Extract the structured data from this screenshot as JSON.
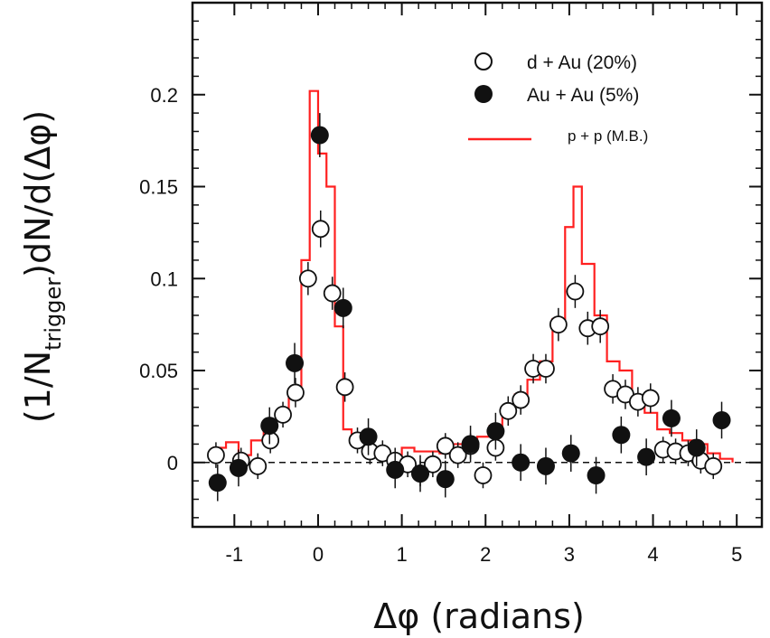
{
  "chart_data": {
    "type": "scatter",
    "title": "",
    "xlabel": "Δφ (radians)",
    "ylabel_parts": {
      "prefix": "(1/N",
      "subscript": "trigger",
      "suffix": ")dN/d(Δφ)"
    },
    "xlim": [
      -1.5,
      5.3
    ],
    "ylim": [
      -0.035,
      0.25
    ],
    "x_ticks": [
      {
        "value": -1,
        "label": "-1"
      },
      {
        "value": 0,
        "label": "0"
      },
      {
        "value": 1,
        "label": "1"
      },
      {
        "value": 2,
        "label": "2"
      },
      {
        "value": 3,
        "label": "3"
      },
      {
        "value": 4,
        "label": "4"
      },
      {
        "value": 5,
        "label": "5"
      }
    ],
    "y_ticks": [
      {
        "value": 0,
        "label": "0"
      },
      {
        "value": 0.05,
        "label": "0.05"
      },
      {
        "value": 0.1,
        "label": "0.1"
      },
      {
        "value": 0.15,
        "label": "0.15"
      },
      {
        "value": 0.2,
        "label": "0.2"
      }
    ],
    "zero_line": true,
    "grid": false,
    "legend_position": "top-right",
    "colors": {
      "pp": "#ff2020",
      "axis": "#111111",
      "markers": "#111111"
    },
    "series": [
      {
        "name": "d + Au (20%)",
        "marker": "open-circle",
        "points": [
          {
            "x": -1.22,
            "y": 0.004,
            "err": 0.007
          },
          {
            "x": -0.92,
            "y": 0.001,
            "err": 0.007
          },
          {
            "x": -0.72,
            "y": -0.002,
            "err": 0.007
          },
          {
            "x": -0.57,
            "y": 0.012,
            "err": 0.007
          },
          {
            "x": -0.42,
            "y": 0.026,
            "err": 0.007
          },
          {
            "x": -0.27,
            "y": 0.038,
            "err": 0.008
          },
          {
            "x": -0.12,
            "y": 0.1,
            "err": 0.009
          },
          {
            "x": 0.03,
            "y": 0.127,
            "err": 0.01
          },
          {
            "x": 0.17,
            "y": 0.092,
            "err": 0.009
          },
          {
            "x": 0.32,
            "y": 0.041,
            "err": 0.008
          },
          {
            "x": 0.47,
            "y": 0.012,
            "err": 0.007
          },
          {
            "x": 0.62,
            "y": 0.006,
            "err": 0.007
          },
          {
            "x": 0.77,
            "y": 0.005,
            "err": 0.007
          },
          {
            "x": 0.92,
            "y": 0.001,
            "err": 0.007
          },
          {
            "x": 1.07,
            "y": -0.001,
            "err": 0.007
          },
          {
            "x": 1.22,
            "y": -0.006,
            "err": 0.007
          },
          {
            "x": 1.37,
            "y": -0.001,
            "err": 0.007
          },
          {
            "x": 1.52,
            "y": 0.009,
            "err": 0.007
          },
          {
            "x": 1.67,
            "y": 0.004,
            "err": 0.007
          },
          {
            "x": 1.82,
            "y": 0.009,
            "err": 0.007
          },
          {
            "x": 1.97,
            "y": -0.007,
            "err": 0.007
          },
          {
            "x": 2.12,
            "y": 0.008,
            "err": 0.007
          },
          {
            "x": 2.27,
            "y": 0.028,
            "err": 0.008
          },
          {
            "x": 2.42,
            "y": 0.034,
            "err": 0.008
          },
          {
            "x": 2.57,
            "y": 0.051,
            "err": 0.008
          },
          {
            "x": 2.72,
            "y": 0.051,
            "err": 0.008
          },
          {
            "x": 2.87,
            "y": 0.075,
            "err": 0.009
          },
          {
            "x": 3.07,
            "y": 0.093,
            "err": 0.009
          },
          {
            "x": 3.22,
            "y": 0.073,
            "err": 0.009
          },
          {
            "x": 3.37,
            "y": 0.074,
            "err": 0.009
          },
          {
            "x": 3.52,
            "y": 0.04,
            "err": 0.008
          },
          {
            "x": 3.67,
            "y": 0.037,
            "err": 0.008
          },
          {
            "x": 3.82,
            "y": 0.033,
            "err": 0.008
          },
          {
            "x": 3.97,
            "y": 0.035,
            "err": 0.008
          },
          {
            "x": 4.12,
            "y": 0.007,
            "err": 0.007
          },
          {
            "x": 4.27,
            "y": 0.006,
            "err": 0.007
          },
          {
            "x": 4.42,
            "y": 0.005,
            "err": 0.007
          },
          {
            "x": 4.57,
            "y": 0.001,
            "err": 0.007
          },
          {
            "x": 4.72,
            "y": -0.002,
            "err": 0.007
          }
        ]
      },
      {
        "name": "Au + Au (5%)",
        "marker": "filled-circle",
        "points": [
          {
            "x": -1.2,
            "y": -0.011,
            "err": 0.01
          },
          {
            "x": -0.95,
            "y": -0.003,
            "err": 0.01
          },
          {
            "x": -0.58,
            "y": 0.02,
            "err": 0.01
          },
          {
            "x": -0.28,
            "y": 0.054,
            "err": 0.011
          },
          {
            "x": 0.02,
            "y": 0.178,
            "err": 0.012
          },
          {
            "x": 0.3,
            "y": 0.084,
            "err": 0.011
          },
          {
            "x": 0.6,
            "y": 0.014,
            "err": 0.01
          },
          {
            "x": 0.92,
            "y": -0.004,
            "err": 0.01
          },
          {
            "x": 1.22,
            "y": -0.006,
            "err": 0.01
          },
          {
            "x": 1.52,
            "y": -0.009,
            "err": 0.01
          },
          {
            "x": 1.82,
            "y": 0.01,
            "err": 0.01
          },
          {
            "x": 2.12,
            "y": 0.017,
            "err": 0.01
          },
          {
            "x": 2.42,
            "y": 0.0,
            "err": 0.01
          },
          {
            "x": 2.72,
            "y": -0.002,
            "err": 0.01
          },
          {
            "x": 3.02,
            "y": 0.005,
            "err": 0.01
          },
          {
            "x": 3.32,
            "y": -0.007,
            "err": 0.01
          },
          {
            "x": 3.62,
            "y": 0.015,
            "err": 0.01
          },
          {
            "x": 3.92,
            "y": 0.003,
            "err": 0.01
          },
          {
            "x": 4.22,
            "y": 0.024,
            "err": 0.01
          },
          {
            "x": 4.52,
            "y": 0.008,
            "err": 0.01
          },
          {
            "x": 4.82,
            "y": 0.023,
            "err": 0.01
          }
        ]
      },
      {
        "name": "p + p (M.B.)",
        "marker": "step-line",
        "bin_edges": [
          -1.25,
          -1.1,
          -0.95,
          -0.8,
          -0.65,
          -0.5,
          -0.35,
          -0.2,
          -0.1,
          0.0,
          0.1,
          0.2,
          0.3,
          0.4,
          0.55,
          0.7,
          0.85,
          1.0,
          1.15,
          1.3,
          1.45,
          1.6,
          1.75,
          1.9,
          2.05,
          2.2,
          2.35,
          2.5,
          2.65,
          2.8,
          2.95,
          3.05,
          3.15,
          3.3,
          3.45,
          3.6,
          3.75,
          3.9,
          4.05,
          4.2,
          4.35,
          4.5,
          4.65,
          4.8,
          4.95
        ],
        "values": [
          0.008,
          0.011,
          0.004,
          0.012,
          0.018,
          0.026,
          0.04,
          0.11,
          0.202,
          0.168,
          0.15,
          0.074,
          0.018,
          0.01,
          0.008,
          0.006,
          0.004,
          0.008,
          0.006,
          0.006,
          0.005,
          0.01,
          0.01,
          0.014,
          0.02,
          0.028,
          0.037,
          0.045,
          0.055,
          0.078,
          0.128,
          0.15,
          0.108,
          0.08,
          0.055,
          0.05,
          0.035,
          0.027,
          0.018,
          0.016,
          0.012,
          0.01,
          0.005,
          0.002
        ]
      }
    ]
  }
}
